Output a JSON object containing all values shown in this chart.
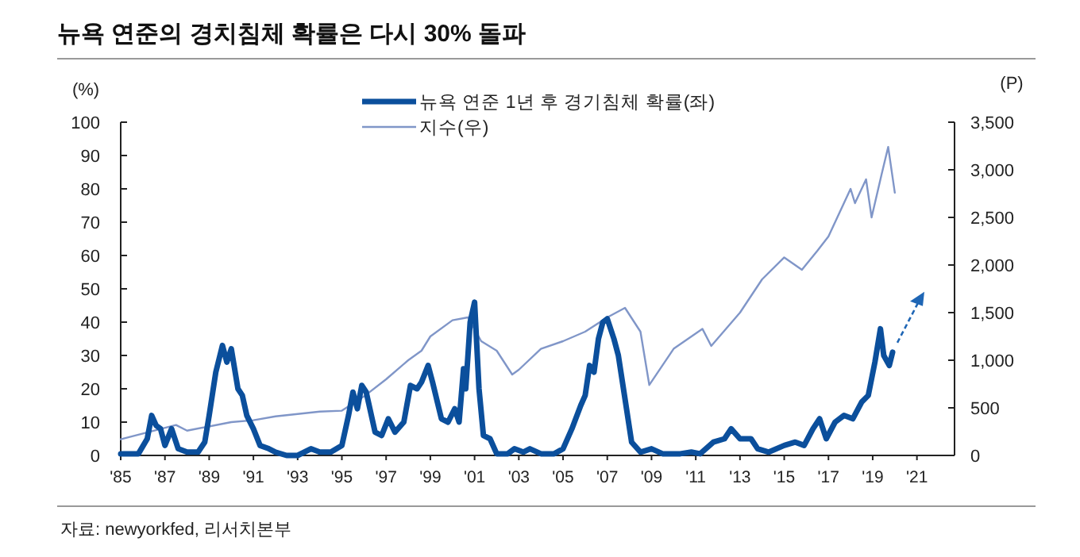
{
  "chart_data": {
    "type": "line",
    "title": "뉴욕 연준의 경치침체 확률은 다시 30% 돌파",
    "ylabel": "(%)",
    "y2label": "(P)",
    "xlim": [
      1985,
      2022.7
    ],
    "xticks": [
      {
        "value": 1985,
        "label": "'85"
      },
      {
        "value": 1987,
        "label": "'87"
      },
      {
        "value": 1989,
        "label": "'89"
      },
      {
        "value": 1991,
        "label": "'91"
      },
      {
        "value": 1993,
        "label": "'93"
      },
      {
        "value": 1995,
        "label": "'95"
      },
      {
        "value": 1997,
        "label": "'97"
      },
      {
        "value": 1999,
        "label": "'99"
      },
      {
        "value": 2001,
        "label": "'01"
      },
      {
        "value": 2003,
        "label": "'03"
      },
      {
        "value": 2005,
        "label": "'05"
      },
      {
        "value": 2007,
        "label": "'07"
      },
      {
        "value": 2009,
        "label": "'09"
      },
      {
        "value": 2011,
        "label": "'11"
      },
      {
        "value": 2013,
        "label": "'13"
      },
      {
        "value": 2015,
        "label": "'15"
      },
      {
        "value": 2017,
        "label": "'17"
      },
      {
        "value": 2019,
        "label": "'19"
      },
      {
        "value": 2021,
        "label": "'21"
      }
    ],
    "ylim": [
      0,
      100
    ],
    "yticks": [
      0,
      10,
      20,
      30,
      40,
      50,
      60,
      70,
      80,
      90,
      100
    ],
    "y2lim": [
      0,
      3500
    ],
    "y2ticks": [
      0,
      500,
      {
        "value": 1000,
        "label": "1,000"
      },
      {
        "value": 1500,
        "label": "1,500"
      },
      {
        "value": 2000,
        "label": "2,000"
      },
      {
        "value": 2500,
        "label": "2,500"
      },
      {
        "value": 3000,
        "label": "3,000"
      },
      {
        "value": 3500,
        "label": "3,500"
      }
    ],
    "legend": "top",
    "grid": false,
    "series": [
      {
        "name": "뉴욕 연준 1년 후 경기침체 확률(좌)",
        "color": "#0b4f9c",
        "x": [
          1985.0,
          1985.8,
          1986.2,
          1986.4,
          1986.6,
          1986.8,
          1987.0,
          1987.3,
          1987.6,
          1988.0,
          1988.5,
          1988.8,
          1989.0,
          1989.3,
          1989.6,
          1989.8,
          1990.0,
          1990.3,
          1990.5,
          1990.7,
          1991.0,
          1991.3,
          1991.7,
          1992.0,
          1992.5,
          1993.0,
          1993.6,
          1994.0,
          1994.5,
          1995.0,
          1995.3,
          1995.5,
          1995.7,
          1995.9,
          1996.1,
          1996.5,
          1996.8,
          1997.1,
          1997.4,
          1997.8,
          1998.1,
          1998.4,
          1998.6,
          1998.9,
          1999.1,
          1999.5,
          1999.8,
          2000.1,
          2000.3,
          2000.5,
          2000.6,
          2000.8,
          2001.0,
          2001.2,
          2001.4,
          2001.7,
          2002.0,
          2002.5,
          2002.8,
          2003.2,
          2003.5,
          2004.0,
          2004.6,
          2005.0,
          2005.4,
          2005.8,
          2006.0,
          2006.2,
          2006.4,
          2006.6,
          2006.8,
          2007.0,
          2007.3,
          2007.5,
          2007.8,
          2008.1,
          2008.5,
          2009.0,
          2009.5,
          2010.3,
          2010.8,
          2011.2,
          2011.8,
          2012.3,
          2012.6,
          2013.0,
          2013.5,
          2013.8,
          2014.3,
          2015.0,
          2015.5,
          2015.9,
          2016.3,
          2016.6,
          2016.9,
          2017.3,
          2017.7,
          2018.1,
          2018.5,
          2018.8,
          2019.1,
          2019.35,
          2019.5,
          2019.75,
          2019.9
        ],
        "values": [
          0.5,
          0.5,
          5,
          12,
          9,
          8,
          3,
          8,
          2,
          1,
          1,
          4,
          12,
          25,
          33,
          28,
          32,
          20,
          18,
          12,
          8,
          3,
          2,
          1,
          0,
          0,
          2,
          1,
          1,
          3,
          12,
          19,
          14,
          21,
          19,
          7,
          6,
          11,
          7,
          10,
          21,
          20,
          22,
          27,
          22,
          11,
          10,
          14,
          10,
          26,
          20,
          40,
          46,
          20,
          6,
          5,
          0.5,
          0.5,
          2,
          1,
          2,
          0.5,
          0.5,
          2,
          8,
          15,
          18,
          27,
          25,
          35,
          40,
          41,
          35,
          30,
          17,
          4,
          1,
          2,
          0.5,
          0.5,
          1,
          0.5,
          4,
          5,
          8,
          5,
          5,
          2,
          1,
          3,
          4,
          3,
          8,
          11,
          5,
          10,
          12,
          11,
          16,
          18,
          28,
          38,
          30,
          27,
          31
        ]
      },
      {
        "name": "지수(우)",
        "color": "#8096c8",
        "axis": "y2",
        "x": [
          1985.0,
          1987.5,
          1988.0,
          1990.0,
          1991.0,
          1992.0,
          1994.0,
          1995.0,
          1996.0,
          1997.0,
          1998.0,
          1998.6,
          1999.0,
          2000.0,
          2000.7,
          2001.3,
          2002.0,
          2002.7,
          2003.0,
          2004.0,
          2005.0,
          2006.0,
          2007.0,
          2007.8,
          2008.5,
          2008.9,
          2010.0,
          2011.3,
          2011.7,
          2013.0,
          2014.0,
          2015.0,
          2015.8,
          2016.5,
          2017.0,
          2018.0,
          2018.2,
          2018.7,
          2018.95,
          2019.4,
          2019.7,
          2020.0
        ],
        "values": [
          170,
          320,
          260,
          350,
          370,
          410,
          460,
          470,
          620,
          800,
          1000,
          1100,
          1250,
          1420,
          1450,
          1200,
          1100,
          850,
          900,
          1120,
          1200,
          1300,
          1450,
          1550,
          1300,
          740,
          1120,
          1330,
          1150,
          1500,
          1850,
          2080,
          1950,
          2150,
          2300,
          2800,
          2650,
          2900,
          2500,
          2950,
          3240,
          2760
        ]
      }
    ],
    "annotations": [
      "자료: newyorkfed, 리서치본부"
    ]
  }
}
